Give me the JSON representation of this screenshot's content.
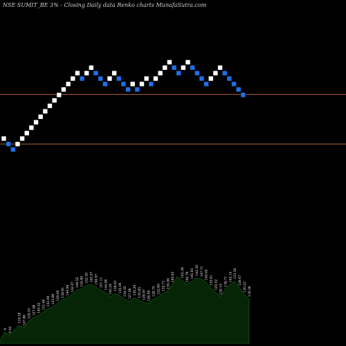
{
  "chart_data": {
    "type": "renko",
    "title": "NSE SUMIT_BE 3% - Closing Daily data Renko charts MunafaSutra.com",
    "colors": {
      "background": "#000000",
      "up_brick": "#ffffff",
      "down_brick": "#1f6fe8",
      "level_line": "#b4602a",
      "volume_fill": "#062406",
      "volume_stroke": "#0d4a10",
      "volume_label": "#ffffff"
    },
    "price_range": [
      100,
      200
    ],
    "levels": [
      165.3,
      140.7
    ],
    "bricks": [
      {
        "dir": "up",
        "level": 143.4
      },
      {
        "dir": "down",
        "level": 140.7
      },
      {
        "dir": "down",
        "level": 138.0
      },
      {
        "dir": "up",
        "level": 140.7
      },
      {
        "dir": "up",
        "level": 143.4
      },
      {
        "dir": "up",
        "level": 146.1
      },
      {
        "dir": "up",
        "level": 148.8
      },
      {
        "dir": "up",
        "level": 151.5
      },
      {
        "dir": "up",
        "level": 154.2
      },
      {
        "dir": "up",
        "level": 156.9
      },
      {
        "dir": "up",
        "level": 159.6
      },
      {
        "dir": "up",
        "level": 162.3
      },
      {
        "dir": "up",
        "level": 165.0
      },
      {
        "dir": "up",
        "level": 167.7
      },
      {
        "dir": "up",
        "level": 170.4
      },
      {
        "dir": "up",
        "level": 173.1
      },
      {
        "dir": "up",
        "level": 175.8
      },
      {
        "dir": "down",
        "level": 173.1
      },
      {
        "dir": "up",
        "level": 175.8
      },
      {
        "dir": "up",
        "level": 178.5
      },
      {
        "dir": "down",
        "level": 175.8
      },
      {
        "dir": "down",
        "level": 173.1
      },
      {
        "dir": "down",
        "level": 170.4
      },
      {
        "dir": "up",
        "level": 173.1
      },
      {
        "dir": "up",
        "level": 175.8
      },
      {
        "dir": "down",
        "level": 173.1
      },
      {
        "dir": "down",
        "level": 170.4
      },
      {
        "dir": "down",
        "level": 167.7
      },
      {
        "dir": "up",
        "level": 170.4
      },
      {
        "dir": "down",
        "level": 167.7
      },
      {
        "dir": "up",
        "level": 170.4
      },
      {
        "dir": "up",
        "level": 173.1
      },
      {
        "dir": "down",
        "level": 170.4
      },
      {
        "dir": "up",
        "level": 173.1
      },
      {
        "dir": "up",
        "level": 175.8
      },
      {
        "dir": "up",
        "level": 178.5
      },
      {
        "dir": "up",
        "level": 181.2
      },
      {
        "dir": "down",
        "level": 178.5
      },
      {
        "dir": "down",
        "level": 175.8
      },
      {
        "dir": "up",
        "level": 178.5
      },
      {
        "dir": "up",
        "level": 181.2
      },
      {
        "dir": "down",
        "level": 178.5
      },
      {
        "dir": "down",
        "level": 175.8
      },
      {
        "dir": "down",
        "level": 173.1
      },
      {
        "dir": "down",
        "level": 170.4
      },
      {
        "dir": "up",
        "level": 173.1
      },
      {
        "dir": "up",
        "level": 175.8
      },
      {
        "dir": "up",
        "level": 178.5
      },
      {
        "dir": "down",
        "level": 175.8
      },
      {
        "dir": "down",
        "level": 173.1
      },
      {
        "dir": "down",
        "level": 170.4
      },
      {
        "dir": "down",
        "level": 167.7
      },
      {
        "dir": "down",
        "level": 165.0
      }
    ],
    "volume": {
      "values": [
        2,
        10,
        7,
        12,
        16,
        14,
        20,
        23,
        25,
        28,
        31,
        33,
        36,
        39,
        41,
        44,
        48,
        49,
        52,
        53,
        51,
        48,
        46,
        42,
        45,
        43,
        40,
        38,
        41,
        39,
        37,
        36,
        40,
        42,
        45,
        47,
        53,
        60,
        57,
        53,
        56,
        59,
        58,
        55,
        50,
        46,
        42,
        49,
        53,
        56,
        50,
        44,
        40
      ],
      "labels": [
        "",
        "9",
        "0.42",
        "",
        "118.38",
        "147.86",
        "129.03",
        "127.98",
        "145.52",
        "131.99",
        "132.09",
        "123.86",
        "129.08",
        "138.91",
        "144.99",
        "142.07",
        "149.52",
        "154.89",
        "152.39",
        "162.07",
        "156.97",
        "151.11",
        "144.98",
        "140.24",
        "138.63",
        "135.09",
        "134.35",
        "127.06",
        "130.29",
        "135.65",
        "129.97",
        "126.09",
        "128.75",
        "122.69",
        "132.71",
        "135.06",
        "140.83",
        "",
        "142.36",
        "140.76",
        "145.93",
        "142.38",
        "147.71",
        "140.65",
        "135.81",
        "124.52",
        "130.19",
        "136.71",
        "145.10",
        "133.38",
        "128.47",
        "120.23",
        "116.36"
      ]
    }
  }
}
